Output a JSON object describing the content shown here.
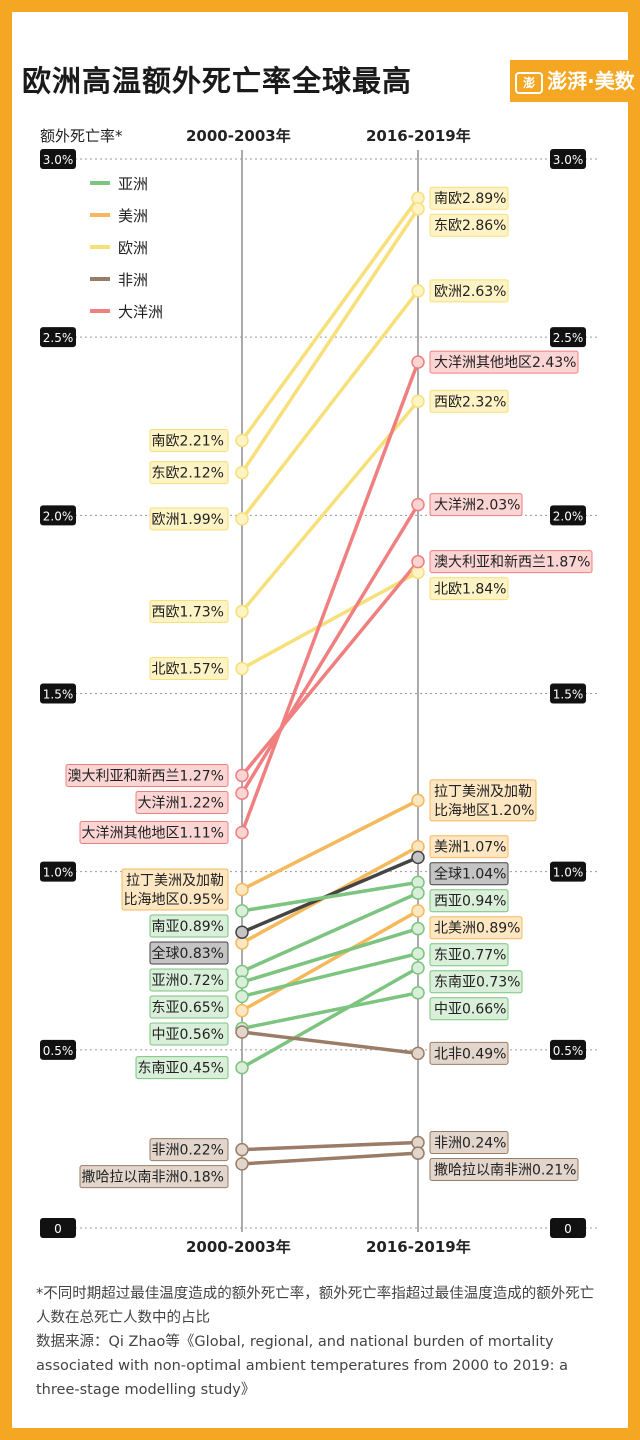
{
  "title": "欧洲高温额外死亡率全球最高",
  "brand": {
    "name": "澎湃·美数课"
  },
  "ylabel": "额外死亡率*",
  "col_left": "2000-2003年",
  "col_right": "2016-2019年",
  "footnote": {
    "line1": "*不同时期超过最佳温度造成的额外死亡率，额外死亡率指超过最佳温度造成的额外死亡人数在总死亡人数中的占比",
    "line2": "数据来源：Qi Zhao等《Global, regional, and national burden of mortality associated with non-optimal ambient temperatures from 2000 to 2019: a three-stage modelling study》"
  },
  "chart_data": {
    "type": "line",
    "subtype": "slope",
    "x": [
      "2000-2003年",
      "2016-2019年"
    ],
    "ylim": [
      0,
      3.0
    ],
    "yticks": [
      {
        "value": 0,
        "label": "0"
      },
      {
        "value": 0.5,
        "label": "0.5%"
      },
      {
        "value": 1.0,
        "label": "1.0%"
      },
      {
        "value": 1.5,
        "label": "1.5%"
      },
      {
        "value": 2.0,
        "label": "2.0%"
      },
      {
        "value": 2.5,
        "label": "2.5%"
      },
      {
        "value": 3.0,
        "label": "3.0%"
      }
    ],
    "grid": true,
    "legend_position": "top-left",
    "groups": [
      {
        "name": "亚洲",
        "color": "#7cc47f",
        "fill": "#d9efd9",
        "text": "#222"
      },
      {
        "name": "美洲",
        "color": "#f5b95c",
        "fill": "#fde6c2",
        "text": "#222"
      },
      {
        "name": "欧洲",
        "color": "#f7e07a",
        "fill": "#fdf3c4",
        "text": "#222"
      },
      {
        "name": "非洲",
        "color": "#9b7c66",
        "fill": "#e2d6cc",
        "text": "#222"
      },
      {
        "name": "大洋洲",
        "color": "#f07f7f",
        "fill": "#fbd4d4",
        "text": "#222"
      },
      {
        "name": "全球",
        "color": "#444444",
        "fill": "#c4c4c4",
        "text": "#222"
      }
    ],
    "series": [
      {
        "group": "欧洲",
        "left": {
          "value": 2.21,
          "label": "南欧2.21%"
        },
        "right": {
          "value": 2.89,
          "label": "南欧2.89%"
        }
      },
      {
        "group": "欧洲",
        "left": {
          "value": 2.12,
          "label": "东欧2.12%"
        },
        "right": {
          "value": 2.86,
          "label": "东欧2.86%"
        }
      },
      {
        "group": "欧洲",
        "left": {
          "value": 1.99,
          "label": "欧洲1.99%"
        },
        "right": {
          "value": 2.63,
          "label": "欧洲2.63%"
        }
      },
      {
        "group": "欧洲",
        "left": {
          "value": 1.73,
          "label": "西欧1.73%"
        },
        "right": {
          "value": 2.32,
          "label": "西欧2.32%"
        }
      },
      {
        "group": "欧洲",
        "left": {
          "value": 1.57,
          "label": "北欧1.57%"
        },
        "right": {
          "value": 1.84,
          "label": "北欧1.84%"
        }
      },
      {
        "group": "大洋洲",
        "left": {
          "value": 1.27,
          "label": "澳大利亚和新西兰1.27%"
        },
        "right": {
          "value": 1.87,
          "label": "澳大利亚和新西兰1.87%"
        }
      },
      {
        "group": "大洋洲",
        "left": {
          "value": 1.22,
          "label": "大洋洲1.22%"
        },
        "right": {
          "value": 2.03,
          "label": "大洋洲2.03%"
        }
      },
      {
        "group": "大洋洲",
        "left": {
          "value": 1.11,
          "label": "大洋洲其他地区1.11%"
        },
        "right": {
          "value": 2.43,
          "label": "大洋洲其他地区2.43%"
        }
      },
      {
        "group": "美洲",
        "left": {
          "value": 0.95,
          "label": "拉丁美洲及加勒\n比海地区0.95%"
        },
        "right": {
          "value": 1.2,
          "label": "拉丁美洲及加勒\n比海地区1.20%"
        }
      },
      {
        "group": "美洲",
        "left": {
          "value": 0.8,
          "label": ""
        },
        "right": {
          "value": 1.07,
          "label": "美洲1.07%"
        }
      },
      {
        "group": "美洲",
        "left": {
          "value": 0.61,
          "label": ""
        },
        "right": {
          "value": 0.89,
          "label": "北美洲0.89%"
        }
      },
      {
        "group": "全球",
        "left": {
          "value": 0.83,
          "label": "全球0.83%"
        },
        "right": {
          "value": 1.04,
          "label": "全球1.04%"
        }
      },
      {
        "group": "亚洲",
        "left": {
          "value": 0.89,
          "label": "南亚0.89%"
        },
        "right": {
          "value": 0.97,
          "label": ""
        }
      },
      {
        "group": "亚洲",
        "left": {
          "value": 0.72,
          "label": "亚洲0.72%"
        },
        "right": {
          "value": 0.94,
          "label": "西亚0.94%"
        }
      },
      {
        "group": "亚洲",
        "left": {
          "value": 0.69,
          "label": ""
        },
        "right": {
          "value": 0.84,
          "label": ""
        }
      },
      {
        "group": "亚洲",
        "left": {
          "value": 0.65,
          "label": "东亚0.65%"
        },
        "right": {
          "value": 0.77,
          "label": "东亚0.77%"
        }
      },
      {
        "group": "亚洲",
        "left": {
          "value": 0.56,
          "label": "中亚0.56%"
        },
        "right": {
          "value": 0.66,
          "label": "中亚0.66%"
        }
      },
      {
        "group": "亚洲",
        "left": {
          "value": 0.45,
          "label": "东南亚0.45%"
        },
        "right": {
          "value": 0.73,
          "label": "东南亚0.73%"
        }
      },
      {
        "group": "非洲",
        "left": {
          "value": 0.55,
          "label": ""
        },
        "right": {
          "value": 0.49,
          "label": "北非0.49%"
        }
      },
      {
        "group": "非洲",
        "left": {
          "value": 0.22,
          "label": "非洲0.22%"
        },
        "right": {
          "value": 0.24,
          "label": "非洲0.24%"
        }
      },
      {
        "group": "非洲",
        "left": {
          "value": 0.18,
          "label": "撒哈拉以南非洲0.18%"
        },
        "right": {
          "value": 0.21,
          "label": "撒哈拉以南非洲0.21%"
        }
      }
    ]
  }
}
